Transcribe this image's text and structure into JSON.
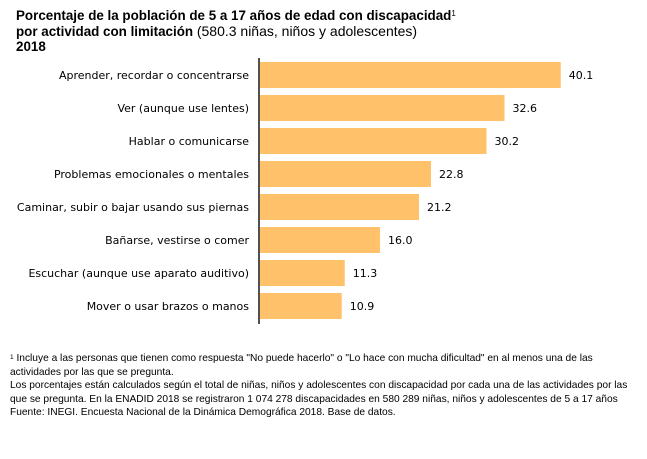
{
  "header": {
    "title_bold": "Porcentaje de la población de 5 a 17 años de edad con discapacidad",
    "title_footnote_mark": "1",
    "subtitle_bold": "por actividad con limitación",
    "subtitle_normal": "(580.3 niñas, niños y adolescentes)",
    "year": "2018"
  },
  "chart_data": {
    "type": "bar",
    "orientation": "horizontal",
    "title": "Porcentaje de la población de 5 a 17 años de edad con discapacidad por actividad con limitación (580.3 niñas, niños y adolescentes) 2018",
    "categories": [
      "Aprender, recordar o concentrarse",
      "Ver (aunque use lentes)",
      "Hablar o comunicarse",
      "Problemas emocionales o mentales",
      "Caminar, subir o bajar usando sus piernas",
      "Bañarse, vestirse o comer",
      "Escuchar (aunque use aparato auditivo)",
      "Mover o usar brazos o manos"
    ],
    "values": [
      40.1,
      32.6,
      30.2,
      22.8,
      21.2,
      16.0,
      11.3,
      10.9
    ],
    "value_labels": [
      "40.1",
      "32.6",
      "30.2",
      "22.8",
      "21.2",
      "16.0",
      "11.3",
      "10.9"
    ],
    "xlabel": "",
    "ylabel": "",
    "xlim": [
      0,
      42
    ],
    "grid": false,
    "legend": "none",
    "bar_color": "#FFC26B",
    "axis_color": "#262626"
  },
  "footnotes": {
    "note1_mark": "1",
    "note1_text": " Incluye a las personas que tienen como respuesta \"No puede hacerlo\" o \"Lo hace con mucha dificultad\" en al menos una de las actividades por las que se pregunta.",
    "note2_text": "Los porcentajes están calculados según el total de niñas, niños y adolescentes con discapacidad por cada una de las actividades por las que se pregunta. En la ENADID 2018 se registraron 1 074 278 discapacidades en 580 289 niñas, niños y adolescentes de 5 a 17 años",
    "source_text": "Fuente: INEGI. Encuesta Nacional de la Dinámica Demográfica 2018. Base de datos."
  }
}
